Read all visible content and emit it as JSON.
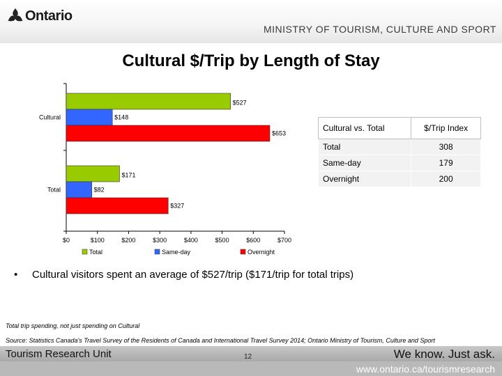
{
  "header": {
    "logo_text": "Ontario",
    "ministry": "MINISTRY OF TOURISM, CULTURE AND SPORT"
  },
  "slide_title": "Cultural $/Trip by Length of Stay",
  "chart_data": {
    "type": "bar",
    "orientation": "horizontal",
    "categories": [
      "Cultural",
      "Total"
    ],
    "series": [
      {
        "name": "Total",
        "values": [
          527,
          171
        ],
        "labels": [
          "$527",
          "$171"
        ],
        "color": "#99cc00"
      },
      {
        "name": "Same-day",
        "values": [
          148,
          82
        ],
        "labels": [
          "$148",
          "$82"
        ],
        "color": "#3366ff"
      },
      {
        "name": "Overnight",
        "values": [
          653,
          327
        ],
        "labels": [
          "$653",
          "$327"
        ],
        "color": "#ff0000"
      }
    ],
    "xlim": [
      0,
      700
    ],
    "xticks": [
      0,
      100,
      200,
      300,
      400,
      500,
      600,
      700
    ],
    "xtick_labels": [
      "$0",
      "$100",
      "$200",
      "$300",
      "$400",
      "$500",
      "$600",
      "$700"
    ],
    "legend_position": "bottom",
    "grid": false
  },
  "index_table": {
    "headers": [
      "Cultural vs. Total",
      "$/Trip Index"
    ],
    "rows": [
      {
        "label": "Total",
        "value": "308"
      },
      {
        "label": "Same-day",
        "value": "179"
      },
      {
        "label": "Overnight",
        "value": "200"
      }
    ]
  },
  "bullet": "Cultural visitors spent an average of $527/trip ($171/trip for total trips)",
  "note": "Total trip spending, not just spending on Cultural",
  "source": "Source: Statistics Canada's Travel Survey of the Residents of Canada and International Travel Survey 2014; Ontario Ministry of Tourism, Culture and Sport",
  "footer": {
    "unit": "Tourism Research Unit",
    "tagline": "We know. Just ask.",
    "page_number": "12",
    "url": "www.ontario.ca/tourismresearch"
  }
}
